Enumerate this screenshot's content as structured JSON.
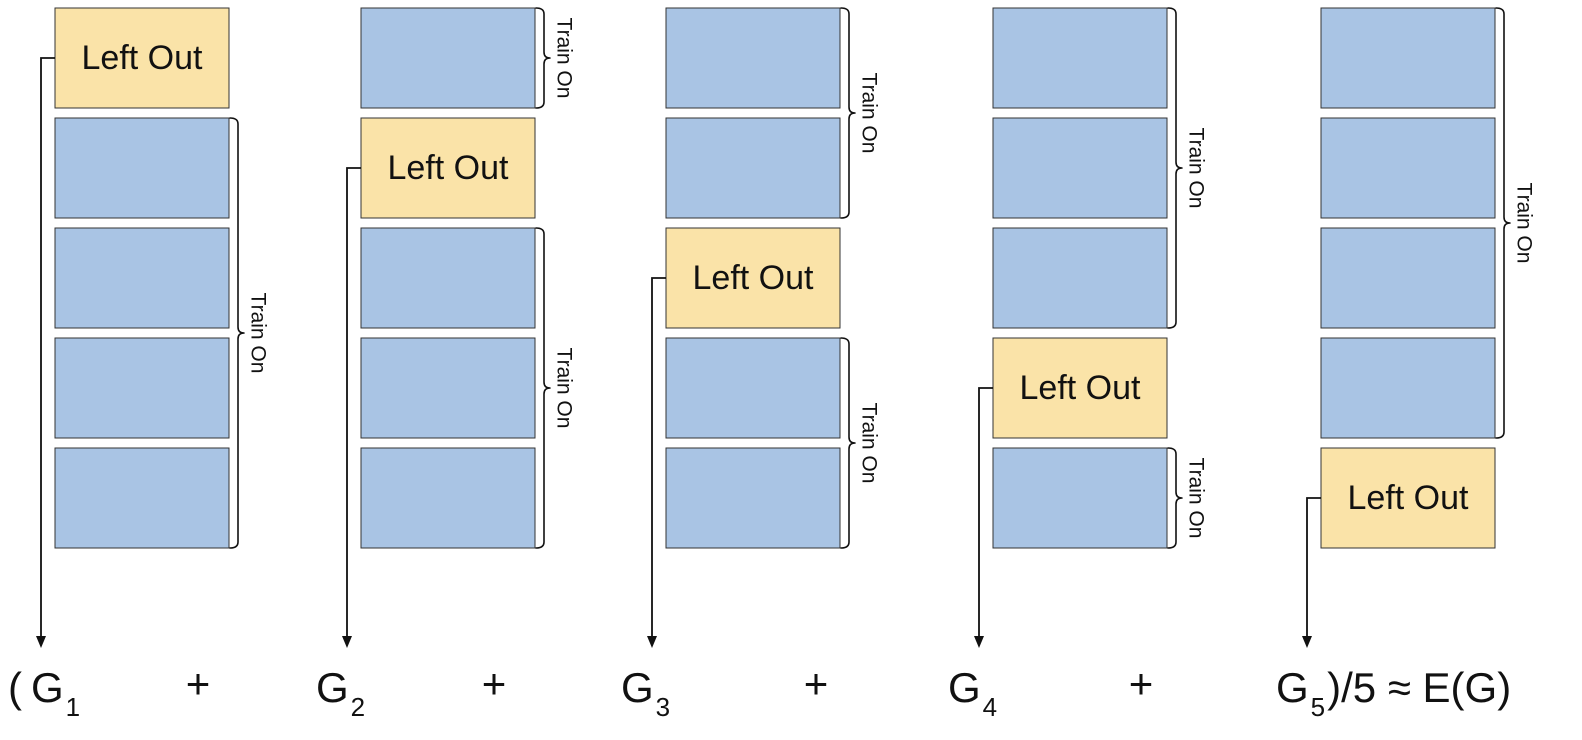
{
  "colors": {
    "train_fold": "#a9c4e4",
    "left_out_fold": "#fae3a8",
    "stroke": "#333333"
  },
  "fold_label": "Left Out",
  "brace_label": "Train On",
  "columns": [
    {
      "left_out_fold": 1,
      "term_prefix": "(",
      "term_main": "G",
      "term_sub": "1",
      "term_suffix": "",
      "operator": "+"
    },
    {
      "left_out_fold": 2,
      "term_prefix": "",
      "term_main": "G",
      "term_sub": "2",
      "term_suffix": "",
      "operator": "+"
    },
    {
      "left_out_fold": 3,
      "term_prefix": "",
      "term_main": "G",
      "term_sub": "3",
      "term_suffix": "",
      "operator": "+"
    },
    {
      "left_out_fold": 4,
      "term_prefix": "",
      "term_main": "G",
      "term_sub": "4",
      "term_suffix": "",
      "operator": "+"
    },
    {
      "left_out_fold": 5,
      "term_prefix": "",
      "term_main": "G",
      "term_sub": "5",
      "term_suffix": ")/5 ≈ E(G)",
      "operator": ""
    }
  ]
}
